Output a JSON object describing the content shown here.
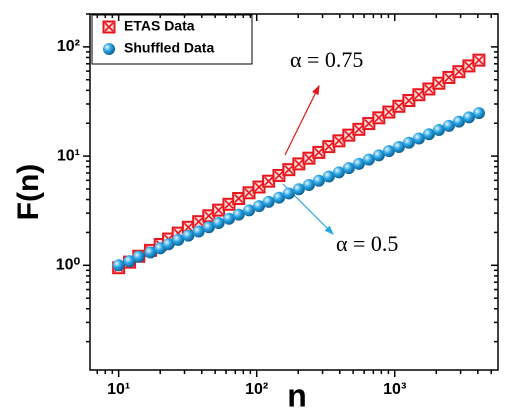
{
  "chart_data": {
    "type": "scatter",
    "x_label": "n",
    "y_label": "F(n)",
    "log_x": true,
    "log_y": true,
    "legend": "top-left",
    "x": [
      10,
      12,
      14,
      17,
      20,
      23,
      27,
      32,
      38,
      45,
      53,
      63,
      74,
      88,
      104,
      122,
      145,
      171,
      202,
      239,
      282,
      333,
      394,
      465,
      550,
      649,
      767,
      907,
      1072,
      1266,
      1496,
      1768,
      2089,
      2469,
      2917,
      3448,
      4074
    ],
    "series": [
      {
        "name": "ETAS Data",
        "color": "#e8161c",
        "line_color": "#f2a03c",
        "marker": "boxx",
        "values": [
          0.95,
          1.07,
          1.21,
          1.37,
          1.55,
          1.74,
          1.97,
          2.23,
          2.51,
          2.84,
          3.2,
          3.62,
          4.09,
          4.61,
          5.21,
          5.89,
          6.65,
          7.51,
          8.48,
          9.57,
          10.81,
          12.21,
          13.79,
          15.56,
          17.58,
          19.85,
          22.41,
          25.31,
          28.58,
          32.28,
          36.45,
          41.16,
          46.48,
          52.49,
          59.28,
          66.94,
          75.59
        ]
      },
      {
        "name": "Shuffled Data",
        "color": "#2aa6e6",
        "line_color": "#f2a03c",
        "marker": "sphere",
        "values": [
          1.0,
          1.09,
          1.2,
          1.31,
          1.43,
          1.56,
          1.71,
          1.87,
          2.04,
          2.23,
          2.44,
          2.67,
          2.91,
          3.18,
          3.48,
          3.81,
          4.16,
          4.55,
          4.97,
          5.44,
          5.94,
          6.5,
          7.1,
          7.76,
          8.49,
          9.28,
          10.14,
          11.09,
          12.12,
          13.25,
          14.49,
          15.84,
          17.32,
          18.93,
          20.7,
          22.62,
          24.73
        ]
      }
    ],
    "xlim": [
      6.2,
      5600
    ],
    "ylim": [
      0.11,
      200
    ],
    "xticks": [
      {
        "value": 10,
        "label": "10¹"
      },
      {
        "value": 100,
        "label": "10²"
      },
      {
        "value": 1000,
        "label": "10³"
      }
    ],
    "yticks": [
      {
        "value": 1,
        "label": "10⁰"
      },
      {
        "value": 10,
        "label": "10¹"
      },
      {
        "value": 100,
        "label": "10²"
      }
    ],
    "xminorticks": [
      7,
      8,
      9,
      20,
      30,
      40,
      50,
      60,
      70,
      80,
      90,
      200,
      300,
      400,
      500,
      600,
      700,
      800,
      900,
      2000,
      3000,
      4000,
      5000
    ],
    "yminorticks": [
      0.2,
      0.3,
      0.4,
      0.5,
      0.6,
      0.7,
      0.8,
      0.9,
      2,
      3,
      4,
      5,
      6,
      7,
      8,
      9,
      20,
      30,
      40,
      50,
      60,
      70,
      80,
      90,
      200
    ],
    "annotations": [
      {
        "text": "α = 0.75"
      },
      {
        "text": "α = 0.5"
      }
    ]
  }
}
